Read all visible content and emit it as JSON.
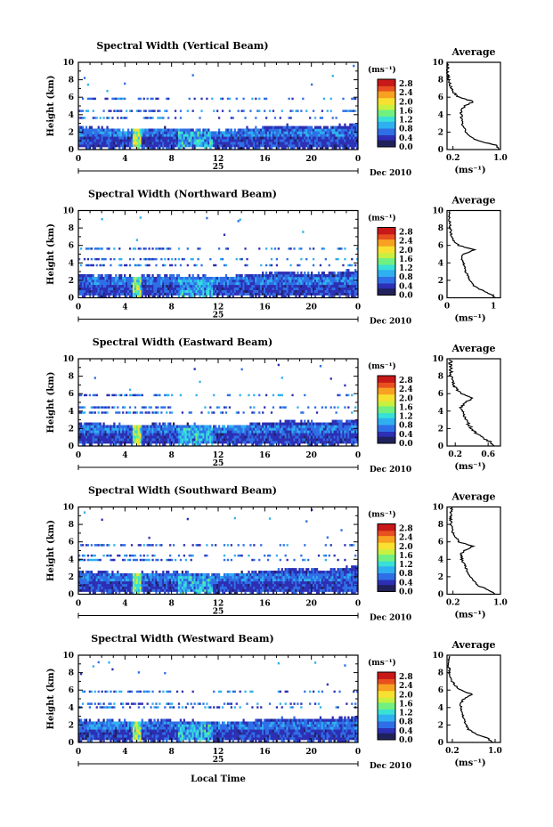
{
  "figure": {
    "xlabel": "Local Time",
    "date_label": "Dec 2010",
    "day_label": "25",
    "colorbar_unit": "(ms⁻¹)",
    "avg_xlabel": "(ms⁻¹)",
    "avg_title": "Average",
    "ylabel": "Height (km)",
    "colorbar_ticks": [
      "0.0",
      "0.4",
      "0.8",
      "1.2",
      "1.6",
      "2.0",
      "2.4",
      "2.8"
    ],
    "colors": {
      "scale": [
        "#20205a",
        "#2c2fb4",
        "#2f6fe6",
        "#2fb0f0",
        "#38e0d8",
        "#70f080",
        "#c8f040",
        "#f8e030",
        "#f8a020",
        "#e85020",
        "#c81818"
      ]
    }
  },
  "chart_data": [
    {
      "type": "heatmap",
      "title": "Spectral Width (Vertical Beam)",
      "x_ticks": [
        "0",
        "4",
        "8",
        "12",
        "16",
        "20",
        "0"
      ],
      "xlim": [
        0,
        24
      ],
      "y_ticks": [
        "0",
        "2",
        "4",
        "6",
        "8",
        "10"
      ],
      "ylim": [
        0,
        10
      ],
      "clim": [
        0,
        3.0
      ],
      "layer_top_km": [
        2.6,
        2.5,
        2.4,
        2.3,
        2.4,
        2.5,
        2.4,
        2.3,
        2.2,
        2.3,
        2.5,
        2.7,
        2.8,
        2.7,
        2.6,
        2.8,
        3.0
      ],
      "average": {
        "xlim": [
          0.1,
          1.0
        ],
        "x_ticks": [
          "0.2",
          "1.0"
        ],
        "x_tick_values": [
          0.2,
          1.0
        ],
        "height_km": [
          0,
          0.5,
          1,
          1.5,
          2,
          2.5,
          3,
          3.5,
          4,
          4.5,
          5,
          5.5,
          6,
          6.5,
          7,
          7.5,
          8,
          8.5,
          9,
          9.5,
          10
        ],
        "value": [
          0.98,
          0.92,
          0.62,
          0.5,
          0.42,
          0.38,
          0.36,
          0.35,
          0.34,
          0.33,
          0.4,
          0.55,
          0.3,
          0.22,
          0.17,
          0.15,
          0.13,
          0.12,
          0.11,
          0.11,
          0.12
        ]
      }
    },
    {
      "type": "heatmap",
      "title": "Spectral Width (Northward Beam)",
      "x_ticks": [
        "0",
        "4",
        "8",
        "12",
        "16",
        "20",
        "0"
      ],
      "xlim": [
        0,
        24
      ],
      "y_ticks": [
        "0",
        "2",
        "4",
        "6",
        "8",
        "10"
      ],
      "ylim": [
        0,
        10
      ],
      "clim": [
        0,
        3.0
      ],
      "layer_top_km": [
        2.7,
        2.6,
        2.5,
        2.5,
        2.6,
        2.6,
        2.5,
        2.5,
        2.4,
        2.5,
        2.7,
        2.9,
        3.0,
        2.9,
        2.8,
        3.0,
        3.2
      ],
      "average": {
        "xlim": [
          0.0,
          1.15
        ],
        "x_ticks": [
          "0",
          "1"
        ],
        "x_tick_values": [
          0,
          1
        ],
        "height_km": [
          0,
          0.5,
          1,
          1.5,
          2,
          2.5,
          3,
          3.5,
          4,
          4.5,
          5,
          5.5,
          6,
          6.5,
          7,
          7.5,
          8,
          8.5,
          9,
          9.5,
          10
        ],
        "value": [
          1.05,
          0.9,
          0.7,
          0.55,
          0.5,
          0.45,
          0.4,
          0.38,
          0.35,
          0.3,
          0.35,
          0.6,
          0.25,
          0.15,
          0.1,
          0.08,
          0.07,
          0.06,
          0.05,
          0.05,
          0.05
        ]
      }
    },
    {
      "type": "heatmap",
      "title": "Spectral Width (Eastward Beam)",
      "x_ticks": [
        "0",
        "4",
        "8",
        "12",
        "16",
        "20",
        "0"
      ],
      "xlim": [
        0,
        24
      ],
      "y_ticks": [
        "0",
        "2",
        "4",
        "6",
        "8",
        "10"
      ],
      "ylim": [
        0,
        10
      ],
      "clim": [
        0,
        3.0
      ],
      "layer_top_km": [
        2.6,
        2.5,
        2.5,
        2.4,
        2.5,
        2.6,
        2.5,
        2.4,
        2.3,
        2.4,
        2.6,
        2.8,
        2.9,
        2.8,
        2.7,
        2.9,
        3.1
      ],
      "average": {
        "xlim": [
          0.1,
          0.75
        ],
        "x_ticks": [
          "0.2",
          "0.6"
        ],
        "x_tick_values": [
          0.2,
          0.6
        ],
        "height_km": [
          0,
          0.5,
          1,
          1.5,
          2,
          2.5,
          3,
          3.5,
          4,
          4.5,
          5,
          5.5,
          6,
          6.5,
          7,
          7.5,
          8,
          8.5,
          9,
          9.5,
          10
        ],
        "value": [
          0.68,
          0.62,
          0.52,
          0.45,
          0.4,
          0.36,
          0.33,
          0.3,
          0.28,
          0.27,
          0.32,
          0.42,
          0.28,
          0.22,
          0.18,
          0.16,
          0.15,
          0.15,
          0.14,
          0.14,
          0.15
        ]
      }
    },
    {
      "type": "heatmap",
      "title": "Spectral Width (Southward Beam)",
      "x_ticks": [
        "0",
        "4",
        "8",
        "12",
        "16",
        "20",
        "0"
      ],
      "xlim": [
        0,
        24
      ],
      "y_ticks": [
        "0",
        "2",
        "4",
        "6",
        "8",
        "10"
      ],
      "ylim": [
        0,
        10
      ],
      "clim": [
        0,
        3.0
      ],
      "layer_top_km": [
        2.7,
        2.6,
        2.5,
        2.4,
        2.5,
        2.6,
        2.5,
        2.4,
        2.3,
        2.4,
        2.6,
        2.8,
        2.9,
        2.9,
        2.8,
        3.0,
        3.2
      ],
      "average": {
        "xlim": [
          0.1,
          1.0
        ],
        "x_ticks": [
          "0.2",
          "1.0"
        ],
        "x_tick_values": [
          0.2,
          1.0
        ],
        "height_km": [
          0,
          0.5,
          1,
          1.5,
          2,
          2.5,
          3,
          3.5,
          4,
          4.5,
          5,
          5.5,
          6,
          6.5,
          7,
          7.5,
          8,
          8.5,
          9,
          9.5,
          10
        ],
        "value": [
          0.92,
          0.8,
          0.62,
          0.55,
          0.5,
          0.45,
          0.42,
          0.38,
          0.35,
          0.33,
          0.38,
          0.55,
          0.3,
          0.25,
          0.2,
          0.18,
          0.17,
          0.16,
          0.16,
          0.17,
          0.18
        ]
      }
    },
    {
      "type": "heatmap",
      "title": "Spectral Width (Westward Beam)",
      "x_ticks": [
        "0",
        "4",
        "8",
        "12",
        "16",
        "20",
        "0"
      ],
      "xlim": [
        0,
        24
      ],
      "y_ticks": [
        "0",
        "2",
        "4",
        "6",
        "8",
        "10"
      ],
      "ylim": [
        0,
        10
      ],
      "clim": [
        0,
        3.0
      ],
      "layer_top_km": [
        2.6,
        2.5,
        2.5,
        2.4,
        2.5,
        2.6,
        2.5,
        2.4,
        2.3,
        2.4,
        2.5,
        2.7,
        2.8,
        2.8,
        2.7,
        2.9,
        3.0
      ],
      "average": {
        "xlim": [
          0.1,
          1.1
        ],
        "x_ticks": [
          "0.2",
          "1.0"
        ],
        "x_tick_values": [
          0.2,
          1.0
        ],
        "height_km": [
          0,
          0.5,
          1,
          1.5,
          2,
          2.5,
          3,
          3.5,
          4,
          4.5,
          5,
          5.5,
          6,
          6.5,
          7,
          7.5,
          8,
          8.5,
          9,
          9.5,
          10
        ],
        "value": [
          0.95,
          0.85,
          0.62,
          0.5,
          0.45,
          0.42,
          0.4,
          0.38,
          0.36,
          0.35,
          0.42,
          0.58,
          0.35,
          0.26,
          0.2,
          0.17,
          0.15,
          0.14,
          0.13,
          0.13,
          0.13
        ]
      }
    }
  ]
}
